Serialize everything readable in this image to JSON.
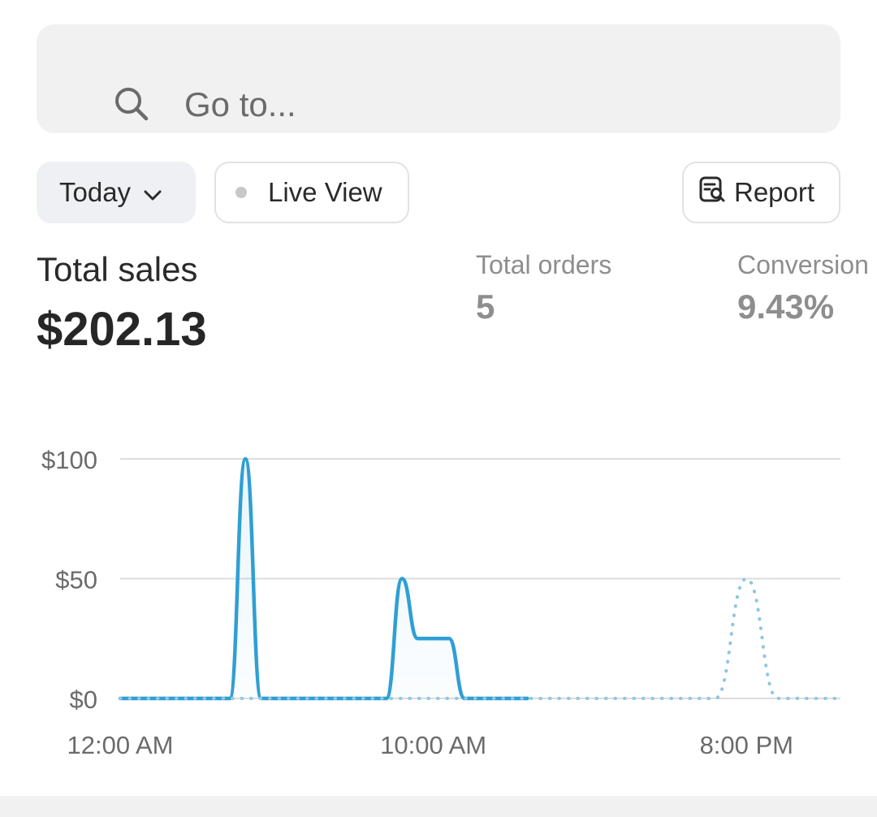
{
  "search": {
    "placeholder": "Go to...",
    "icon": "search-icon"
  },
  "filters": {
    "date_range": {
      "label": "Today",
      "icon": "chevron-down-icon"
    },
    "live_view": {
      "label": "Live View",
      "dot_color": "#c8c8c8"
    },
    "report": {
      "label": "Report",
      "icon": "report-search-icon"
    }
  },
  "metrics": {
    "total_sales": {
      "label": "Total sales",
      "value": "$202.13"
    },
    "total_orders": {
      "label": "Total orders",
      "value": "5"
    },
    "conversion": {
      "label": "Conversion",
      "value": "9.43%"
    }
  },
  "chart_data": {
    "type": "area",
    "title": "",
    "xlabel": "",
    "ylabel": "",
    "ylim": [
      0,
      100
    ],
    "y_ticks": [
      "$0",
      "$50",
      "$100"
    ],
    "x_ticks": [
      {
        "hour": 0,
        "label": "12:00 AM"
      },
      {
        "hour": 10,
        "label": "10:00 AM"
      },
      {
        "hour": 20,
        "label": "8:00 PM"
      }
    ],
    "x_range_hours": [
      0,
      23
    ],
    "accent_color": "#2f9fd4",
    "comparison_color": "#8fc6e2",
    "series": [
      {
        "style": "solid",
        "x": [
          0,
          3,
          3.5,
          4,
          4.5,
          5,
          5.5,
          6,
          7,
          8,
          8.5,
          9,
          9.5,
          10,
          10.5,
          11,
          11.5,
          12,
          13
        ],
        "y": [
          0,
          0,
          0,
          100,
          0,
          0,
          0,
          0,
          0,
          0,
          0,
          50,
          25,
          25,
          25,
          0,
          0,
          0,
          0
        ]
      },
      {
        "style": "dotted",
        "x": [
          0,
          18,
          19,
          20,
          21,
          22,
          23
        ],
        "y": [
          0,
          0,
          0,
          50,
          0,
          0,
          0
        ]
      }
    ]
  }
}
